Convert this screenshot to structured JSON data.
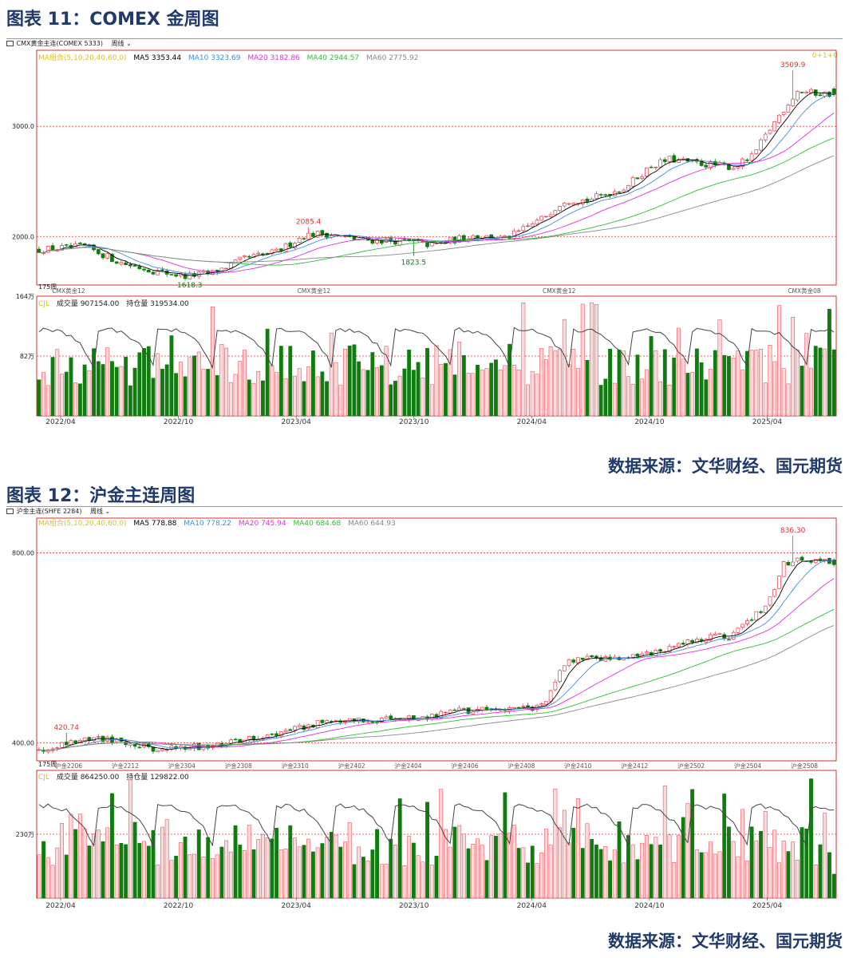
{
  "figures": [
    {
      "id": "comex",
      "title": "图表 11：COMEX 金周图",
      "header_label": "CMX黄金主连(COMEX 5333)",
      "period_label": "周线",
      "ma_group_label": "MA组合(5,10,20,40,60,0)",
      "ma_labels": [
        {
          "text": "MA5 3353.44",
          "color": "#000000"
        },
        {
          "text": "MA10 3323.69",
          "color": "#3b8fe0"
        },
        {
          "text": "MA20 3182.86",
          "color": "#e030e0"
        },
        {
          "text": "MA40 2944.57",
          "color": "#30c030"
        },
        {
          "text": "MA60 2775.92",
          "color": "#888888"
        }
      ],
      "corner_label": "0+1+0",
      "bars_label": "175周",
      "vol_indicator": "CJL",
      "vol_labels": [
        "成交量 907154.00",
        "持仓量 319534.00"
      ],
      "price_ticks": [
        "3000.0",
        "2000.0"
      ],
      "vol_ticks": [
        "164万",
        "82万"
      ],
      "contract_labels": [
        "CMX黄金12",
        "CMX黄金12",
        "CMX黄金12",
        "CMX黄金08"
      ],
      "x_ticks": [
        "2022/04",
        "2022/10",
        "2023/04",
        "2023/10",
        "2024/04",
        "2024/10",
        "2025/04"
      ],
      "annotations": [
        "3509.9",
        "2085.4",
        "1823.5",
        "1618.3"
      ],
      "source": "数据来源：文华财经、国元期货",
      "chart_data": {
        "type": "candlestick",
        "bars": 175,
        "y_ticks": [
          2000,
          3000
        ],
        "ylim": [
          1560,
          3690
        ],
        "vol_ylim": [
          0,
          1640000
        ],
        "vol_ticks": [
          820000,
          1640000
        ],
        "anchors": [
          [
            0,
            1880
          ],
          [
            10,
            1910
          ],
          [
            18,
            1760
          ],
          [
            25,
            1690
          ],
          [
            32,
            1640
          ],
          [
            38,
            1670
          ],
          [
            45,
            1800
          ],
          [
            52,
            1860
          ],
          [
            58,
            2010
          ],
          [
            62,
            2030
          ],
          [
            70,
            1970
          ],
          [
            78,
            1960
          ],
          [
            82,
            1950
          ],
          [
            86,
            1920
          ],
          [
            90,
            1960
          ],
          [
            95,
            2010
          ],
          [
            102,
            1980
          ],
          [
            105,
            2040
          ],
          [
            110,
            2160
          ],
          [
            115,
            2330
          ],
          [
            120,
            2330
          ],
          [
            128,
            2440
          ],
          [
            134,
            2640
          ],
          [
            138,
            2700
          ],
          [
            145,
            2660
          ],
          [
            152,
            2630
          ],
          [
            156,
            2720
          ],
          [
            162,
            3100
          ],
          [
            166,
            3320
          ],
          [
            170,
            3300
          ],
          [
            175,
            3290
          ]
        ],
        "last": {
          "open": 3340,
          "close": 3290,
          "high": 3360,
          "low": 3270
        },
        "highs": [
          {
            "bar": 165,
            "value": 3509.9
          },
          {
            "bar": 59,
            "value": 2085.4
          }
        ],
        "lows": [
          {
            "bar": 82,
            "value": 1823.5
          },
          {
            "bar": 33,
            "value": 1618.3
          }
        ],
        "final_ma": {
          "MA5": 3353.44,
          "MA10": 3323.69,
          "MA20": 3182.86,
          "MA40": 2944.57,
          "MA60": 2775.92
        },
        "final_volume": 907154,
        "final_open_interest": 319534
      }
    },
    {
      "id": "shfe",
      "title": "图表 12：沪金主连周图",
      "header_label": "沪金主连(SHFE 2284)",
      "period_label": "周线",
      "ma_group_label": "MA组合(5,10,20,40,60,0)",
      "ma_labels": [
        {
          "text": "MA5 778.88",
          "color": "#000000"
        },
        {
          "text": "MA10 778.22",
          "color": "#3b8fe0"
        },
        {
          "text": "MA20 745.94",
          "color": "#e030e0"
        },
        {
          "text": "MA40 684.68",
          "color": "#30c030"
        },
        {
          "text": "MA60 644.93",
          "color": "#888888"
        }
      ],
      "corner_label": "",
      "bars_label": "175周",
      "vol_indicator": "CJL",
      "vol_labels": [
        "成交量 864250.00",
        "持仓量 129822.00"
      ],
      "price_ticks": [
        "800.00",
        "400.00"
      ],
      "vol_ticks": [
        "230万"
      ],
      "contract_labels": [
        "沪金2206",
        "沪金2212",
        "沪金2304",
        "沪金2308",
        "沪金2310",
        "沪金2402",
        "沪金2404",
        "沪金2406",
        "沪金2408",
        "沪金2410",
        "沪金2412",
        "沪金2502",
        "沪金2504",
        "沪金2508"
      ],
      "x_ticks": [
        "2022/04",
        "2022/10",
        "2023/04",
        "2023/10",
        "2024/04",
        "2024/10",
        "2025/04"
      ],
      "annotations": [
        "836.30",
        "420.74"
      ],
      "source": "数据来源：文华财经、国元期货",
      "chart_data": {
        "type": "candlestick",
        "bars": 175,
        "y_ticks": [
          400,
          800
        ],
        "ylim": [
          362,
          873
        ],
        "vol_ylim": [
          0,
          4600000
        ],
        "vol_ticks": [
          2300000
        ],
        "anchors": [
          [
            0,
            385
          ],
          [
            5,
            400
          ],
          [
            12,
            410
          ],
          [
            18,
            405
          ],
          [
            25,
            388
          ],
          [
            35,
            392
          ],
          [
            45,
            405
          ],
          [
            55,
            425
          ],
          [
            65,
            450
          ],
          [
            80,
            450
          ],
          [
            95,
            470
          ],
          [
            105,
            475
          ],
          [
            110,
            475
          ],
          [
            113,
            530
          ],
          [
            116,
            575
          ],
          [
            130,
            580
          ],
          [
            140,
            605
          ],
          [
            145,
            620
          ],
          [
            152,
            625
          ],
          [
            156,
            660
          ],
          [
            160,
            700
          ],
          [
            163,
            780
          ],
          [
            168,
            785
          ],
          [
            175,
            775
          ]
        ],
        "last": {
          "open": 785,
          "close": 775,
          "high": 790,
          "low": 770
        },
        "highs": [
          {
            "bar": 165,
            "value": 836.3
          },
          {
            "bar": 6,
            "value": 420.74
          }
        ],
        "lows": [],
        "final_ma": {
          "MA5": 778.88,
          "MA10": 778.22,
          "MA20": 745.94,
          "MA40": 684.68,
          "MA60": 644.93
        },
        "final_volume": 864250,
        "final_open_interest": 129822
      }
    }
  ]
}
